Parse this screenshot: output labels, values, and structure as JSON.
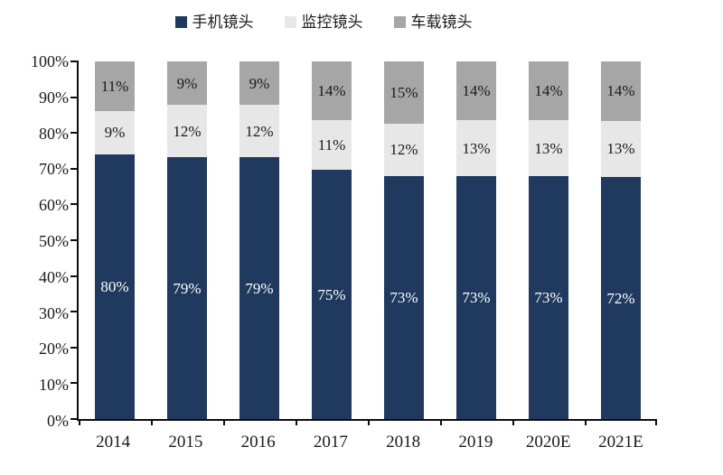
{
  "colors": {
    "series_phone": "#1f3a5e",
    "series_surveillance": "#e7e7e7",
    "series_vehicle": "#a6a6a6",
    "axis": "#0d0d0d",
    "label_on_dark": "#ffffff",
    "label_on_light": "#1a1a1a",
    "background": "#ffffff"
  },
  "chart_data": {
    "type": "bar",
    "variant": "100-percent-stacked-column",
    "title": "",
    "xlabel": "",
    "ylabel": "",
    "grid": false,
    "legend_position": "top",
    "ylim": [
      0,
      100
    ],
    "y_ticks": [
      "100%",
      "90%",
      "80%",
      "70%",
      "60%",
      "50%",
      "40%",
      "30%",
      "20%",
      "10%",
      "0%"
    ],
    "categories": [
      "2014",
      "2015",
      "2016",
      "2017",
      "2018",
      "2019",
      "2020E",
      "2021E"
    ],
    "series": [
      {
        "name": "手机镜头",
        "color": "#1f3a5e",
        "label_color": "#ffffff",
        "values": [
          80,
          79,
          79,
          75,
          73,
          73,
          73,
          72
        ]
      },
      {
        "name": "监控镜头",
        "color": "#e7e7e7",
        "label_color": "#1a1a1a",
        "values": [
          9,
          12,
          12,
          11,
          12,
          13,
          13,
          13
        ]
      },
      {
        "name": "车载镜头",
        "color": "#a6a6a6",
        "label_color": "#1a1a1a",
        "values": [
          11,
          9,
          9,
          14,
          15,
          14,
          14,
          14
        ]
      }
    ],
    "data_label_suffix": "%"
  }
}
